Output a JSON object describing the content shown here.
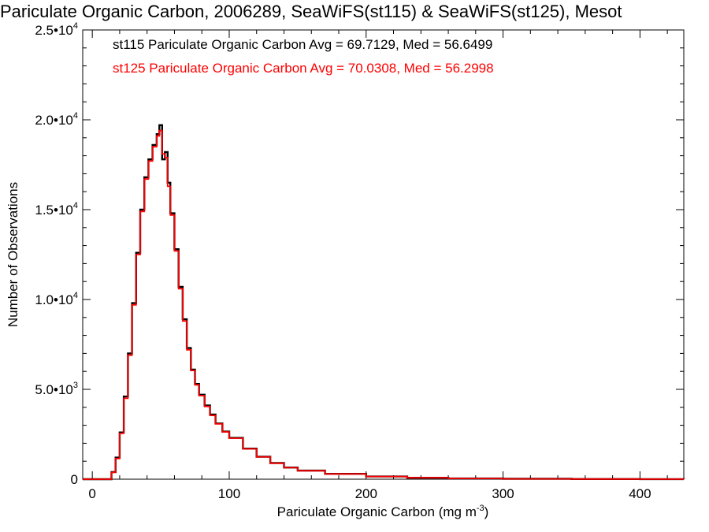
{
  "chart_data": {
    "type": "line",
    "title": "Pariculate Organic Carbon, 2006289, SeaWiFS(st115) & SeaWiFS(st125), Mesot",
    "xlabel": "Pariculate Organic Carbon (mg m",
    "xlabel_sup": "-3",
    "xlabel_close": ")",
    "ylabel": "Number of Observations",
    "xlim": [
      -7,
      432
    ],
    "ylim": [
      0,
      25000
    ],
    "x_ticks": [
      {
        "value": 0,
        "label": "0"
      },
      {
        "value": 100,
        "label": "100"
      },
      {
        "value": 200,
        "label": "200"
      },
      {
        "value": 300,
        "label": "300"
      },
      {
        "value": 400,
        "label": "400"
      }
    ],
    "y_ticks": [
      {
        "value": 0,
        "label": "0",
        "sup": ""
      },
      {
        "value": 5000,
        "label": "5.0•10",
        "sup": "3"
      },
      {
        "value": 10000,
        "label": "1.0•10",
        "sup": "4"
      },
      {
        "value": 15000,
        "label": "1.5•10",
        "sup": "4"
      },
      {
        "value": 20000,
        "label": "2.0•10",
        "sup": "4"
      },
      {
        "value": 25000,
        "label": "2.5•10",
        "sup": "4"
      }
    ],
    "grid": false,
    "annotations": [
      {
        "text": "st115 Pariculate Organic Carbon Avg = 69.7129, Med = 56.6499",
        "color": "#000000"
      },
      {
        "text": "st125 Pariculate Organic Carbon Avg = 70.0308, Med = 56.2998",
        "color": "#ff0000"
      }
    ],
    "series": [
      {
        "color": "#000000",
        "x": [
          -7,
          10,
          14,
          17,
          20,
          23,
          26,
          29,
          32,
          35,
          38,
          41,
          44,
          47,
          49,
          51,
          53,
          55,
          57,
          60,
          63,
          66,
          69,
          72,
          75,
          78,
          82,
          86,
          90,
          95,
          100,
          110,
          120,
          130,
          140,
          150,
          170,
          200,
          230,
          260,
          300,
          350,
          400,
          432
        ],
        "y": [
          0,
          0,
          400,
          1200,
          2600,
          4600,
          7000,
          9800,
          12600,
          15000,
          16800,
          17800,
          18600,
          19200,
          19700,
          17800,
          18200,
          16500,
          14800,
          12800,
          10700,
          8900,
          7300,
          6100,
          5300,
          4700,
          4100,
          3600,
          3100,
          2650,
          2300,
          1700,
          1250,
          900,
          650,
          480,
          300,
          150,
          80,
          40,
          20,
          8,
          3,
          0
        ]
      },
      {
        "color": "#ff0000",
        "x": [
          -7,
          10,
          14,
          17,
          20,
          23,
          26,
          29,
          32,
          35,
          38,
          41,
          44,
          47,
          49,
          51,
          53,
          55,
          57,
          60,
          63,
          66,
          69,
          72,
          75,
          78,
          82,
          86,
          90,
          95,
          100,
          110,
          120,
          130,
          140,
          150,
          170,
          200,
          230,
          260,
          300,
          350,
          400,
          432
        ],
        "y": [
          0,
          0,
          380,
          1150,
          2550,
          4500,
          6900,
          9700,
          12500,
          14900,
          16700,
          17700,
          18500,
          19100,
          19400,
          18100,
          17900,
          16300,
          14700,
          12700,
          10600,
          8800,
          7200,
          6050,
          5250,
          4650,
          4050,
          3550,
          3080,
          2630,
          2280,
          1690,
          1240,
          890,
          640,
          470,
          295,
          148,
          78,
          39,
          19,
          7,
          3,
          0
        ]
      }
    ]
  }
}
